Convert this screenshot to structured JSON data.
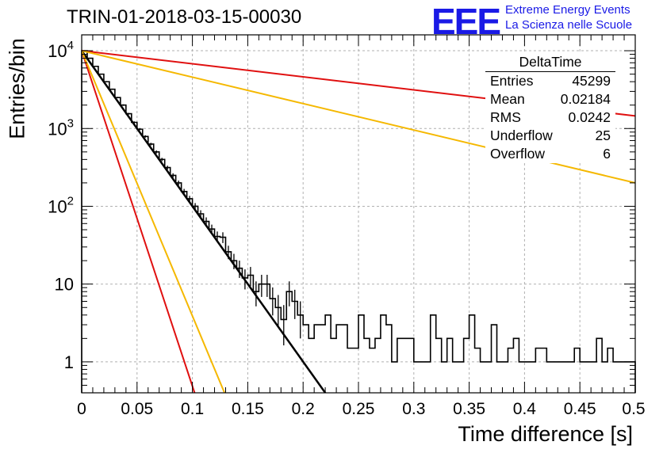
{
  "chart_data": {
    "type": "histogram",
    "title": "TRIN-01-2018-03-15-00030",
    "xlabel": "Time difference [s]",
    "ylabel": "Entries/bin",
    "xlim": [
      0,
      0.5
    ],
    "ylim": [
      0.4,
      16000
    ],
    "yscale": "log",
    "grid": true,
    "x_ticks": [
      "0",
      "0.05",
      "0.1",
      "0.15",
      "0.2",
      "0.25",
      "0.3",
      "0.35",
      "0.4",
      "0.45",
      "0.5"
    ],
    "y_ticks": [
      {
        "value": 1,
        "base": "1",
        "exp": ""
      },
      {
        "value": 10,
        "base": "10",
        "exp": ""
      },
      {
        "value": 100,
        "base": "10",
        "exp": "2"
      },
      {
        "value": 1000,
        "base": "10",
        "exp": "3"
      },
      {
        "value": 10000,
        "base": "10",
        "exp": "4"
      }
    ],
    "bin_width": 0.005,
    "histogram": {
      "color": "#000000",
      "values": [
        10000,
        8000,
        6300,
        5000,
        4000,
        3200,
        2500,
        2000,
        1550,
        1200,
        980,
        790,
        630,
        500,
        400,
        315,
        250,
        200,
        155,
        125,
        100,
        80,
        64,
        51,
        41,
        40,
        26,
        20,
        16,
        12,
        13,
        8,
        10,
        10,
        6.5,
        5,
        3.5,
        8,
        6,
        4,
        3,
        2,
        3,
        3,
        4,
        2,
        3,
        3,
        1.5,
        1.5,
        4,
        2,
        1.5,
        2,
        4,
        3,
        1,
        2,
        2,
        2,
        1,
        1,
        1,
        4,
        2,
        1,
        2,
        1,
        1,
        2,
        4,
        1.5,
        1,
        1,
        3,
        1,
        1,
        1.5,
        2,
        1,
        1,
        1,
        1.5,
        1.5,
        1,
        1,
        1,
        1,
        1,
        1.5,
        1,
        1,
        1,
        2,
        1,
        1.5,
        1,
        1,
        1,
        1
      ]
    },
    "series": [
      {
        "type": "fit",
        "color": "#000000",
        "width": 2.5,
        "x": [
          0,
          0.22
        ],
        "y": [
          10000,
          0.4
        ]
      },
      {
        "type": "fit",
        "color": "#e01010",
        "width": 2,
        "x": [
          0,
          0.102
        ],
        "y": [
          10000,
          0.4
        ]
      },
      {
        "type": "fit",
        "color": "#f5b800",
        "width": 2,
        "x": [
          0,
          0.129
        ],
        "y": [
          10000,
          0.4
        ]
      },
      {
        "type": "fit",
        "color": "#e01010",
        "width": 2,
        "x": [
          0,
          0.5
        ],
        "y": [
          10000,
          1450
        ]
      },
      {
        "type": "fit",
        "color": "#f5b800",
        "width": 2,
        "x": [
          0,
          0.5
        ],
        "y": [
          10000,
          200
        ]
      }
    ]
  },
  "stats_box": {
    "title": "DeltaTime",
    "rows": [
      {
        "label": "Entries",
        "value": "45299"
      },
      {
        "label": "Mean",
        "value": "0.02184"
      },
      {
        "label": "RMS",
        "value": "0.0242"
      },
      {
        "label": "Underflow",
        "value": "25"
      },
      {
        "label": "Overflow",
        "value": "6"
      }
    ]
  },
  "logo": {
    "text": "EEE",
    "line1": "Extreme Energy Events",
    "line2": "La Scienza nelle Scuole",
    "color": "#1a1ae6"
  }
}
